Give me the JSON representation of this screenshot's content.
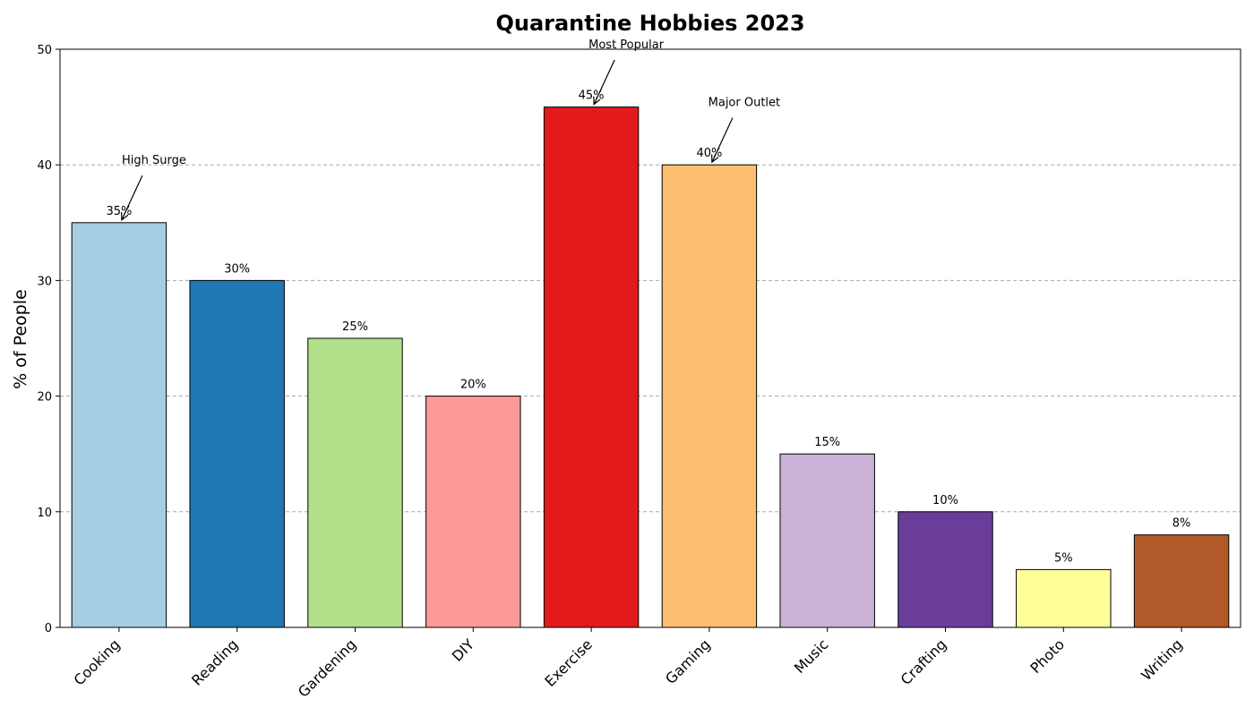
{
  "chart_data": {
    "type": "bar",
    "title": "Quarantine Hobbies 2023",
    "xlabel": "",
    "ylabel": "% of People",
    "ylim": [
      0,
      50
    ],
    "yticks": [
      0,
      10,
      20,
      30,
      40,
      50
    ],
    "grid": "y-dashed",
    "categories": [
      "Cooking",
      "Reading",
      "Gardening",
      "DIY",
      "Exercise",
      "Gaming",
      "Music",
      "Crafting",
      "Photo",
      "Writing"
    ],
    "values": [
      35,
      30,
      25,
      20,
      45,
      40,
      15,
      10,
      5,
      8
    ],
    "value_labels": [
      "35%",
      "30%",
      "25%",
      "20%",
      "45%",
      "40%",
      "15%",
      "10%",
      "5%",
      "8%"
    ],
    "colors": [
      "#a6cee3",
      "#1f78b4",
      "#b2df8a",
      "#fb9a99",
      "#e31a1c",
      "#fdbf6f",
      "#cab2d6",
      "#6a3d9a",
      "#ffff99",
      "#b15928"
    ],
    "annotations": [
      {
        "text": "High Surge",
        "category": "Cooking",
        "value": 35,
        "text_value": 40
      },
      {
        "text": "Most Popular",
        "category": "Exercise",
        "value": 45,
        "text_value": 50
      },
      {
        "text": "Major Outlet",
        "category": "Gaming",
        "value": 40,
        "text_value": 45
      }
    ]
  }
}
